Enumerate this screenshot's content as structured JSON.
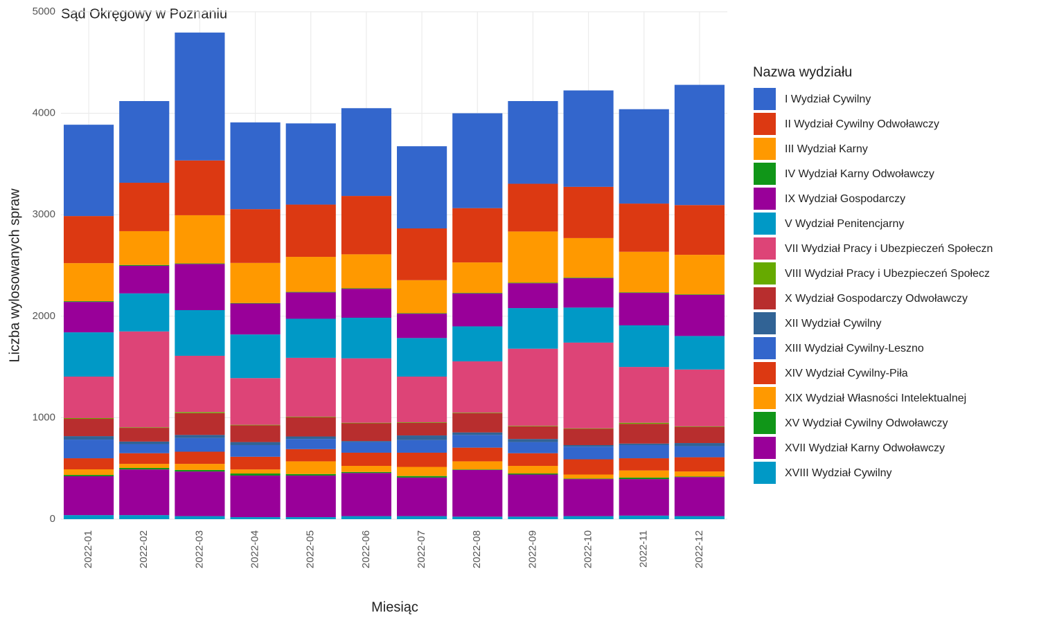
{
  "chart_data": {
    "type": "stacked_bar",
    "title": "Sąd Okręgowy w Poznaniu",
    "x_label": "Miesiąc",
    "y_label": "Liczba wylosowanych spraw",
    "legend_title": "Nazwa wydziału",
    "categories": [
      "2022-01",
      "2022-02",
      "2022-03",
      "2022-04",
      "2022-05",
      "2022-06",
      "2022-07",
      "2022-08",
      "2022-09",
      "2022-10",
      "2022-11",
      "2022-12"
    ],
    "ylim": [
      0,
      5000
    ],
    "yticks": [
      0,
      1000,
      2000,
      3000,
      4000,
      5000
    ],
    "grid": true,
    "legend_position": "right",
    "series": [
      {
        "name": "I Wydział Cywilny",
        "color": "#3366CC",
        "values": [
          900,
          805,
          1260,
          855,
          800,
          865,
          810,
          935,
          815,
          950,
          930,
          1185
        ]
      },
      {
        "name": "II Wydział Cywilny Odwoławczy",
        "color": "#DC3912",
        "values": [
          464,
          477,
          540,
          530,
          515,
          575,
          510,
          535,
          470,
          505,
          475,
          490
        ]
      },
      {
        "name": "III Wydział Karny",
        "color": "#FF9900",
        "values": [
          375,
          333,
          475,
          395,
          345,
          335,
          325,
          300,
          505,
          390,
          400,
          390
        ]
      },
      {
        "name": "IV Wydział Karny Odwoławczy",
        "color": "#109618",
        "values": [
          7,
          8,
          5,
          5,
          5,
          5,
          5,
          5,
          5,
          5,
          5,
          5
        ]
      },
      {
        "name": "IX Wydział Gospodarczy",
        "color": "#990099",
        "values": [
          300,
          272,
          455,
          305,
          260,
          285,
          240,
          325,
          245,
          290,
          320,
          405
        ]
      },
      {
        "name": "V Wydział Penitencjarny",
        "color": "#0099C6",
        "values": [
          436,
          375,
          450,
          430,
          385,
          400,
          380,
          345,
          400,
          345,
          410,
          330
        ]
      },
      {
        "name": "VII Wydział Pracy i Ubezpieczeń Społeczn",
        "color": "#DD4477",
        "values": [
          409,
          945,
          555,
          460,
          580,
          635,
          450,
          505,
          760,
          845,
          550,
          560
        ]
      },
      {
        "name": "VIII Wydział Pracy i Ubezpieczeń Społecz",
        "color": "#66AA00",
        "values": [
          7,
          5,
          10,
          5,
          5,
          5,
          5,
          5,
          5,
          5,
          10,
          5
        ]
      },
      {
        "name": "X Wydział Gospodarczy Odwoławczy",
        "color": "#B82E2E",
        "values": [
          171,
          135,
          215,
          165,
          190,
          175,
          125,
          190,
          125,
          160,
          195,
          160
        ]
      },
      {
        "name": "XII Wydział Cywilny",
        "color": "#316395",
        "values": [
          34,
          25,
          30,
          30,
          25,
          10,
          45,
          25,
          30,
          15,
          15,
          30
        ]
      },
      {
        "name": "XIII Wydział Cywilny-Leszno",
        "color": "#3366CC",
        "values": [
          184,
          90,
          135,
          115,
          100,
          105,
          125,
          125,
          110,
          125,
          130,
          110
        ]
      },
      {
        "name": "XIV Wydział Cywilny-Piła",
        "color": "#DC3912",
        "values": [
          109,
          105,
          120,
          125,
          120,
          130,
          140,
          135,
          125,
          150,
          120,
          140
        ]
      },
      {
        "name": "XIX Wydział Własności Intelektualnej",
        "color": "#FF9900",
        "values": [
          55,
          40,
          60,
          40,
          125,
          60,
          90,
          80,
          75,
          40,
          70,
          50
        ]
      },
      {
        "name": "XV Wydział Cywilny Odwoławczy",
        "color": "#109618",
        "values": [
          13,
          15,
          15,
          20,
          15,
          10,
          15,
          5,
          10,
          5,
          15,
          5
        ]
      },
      {
        "name": "XVII Wydział Karny Odwoławczy",
        "color": "#990099",
        "values": [
          383,
          450,
          440,
          410,
          410,
          425,
          380,
          460,
          415,
          365,
          360,
          385
        ]
      },
      {
        "name": "XVIII Wydział Cywilny",
        "color": "#0099C6",
        "values": [
          40,
          40,
          30,
          20,
          20,
          30,
          30,
          25,
          25,
          30,
          35,
          30
        ]
      }
    ]
  }
}
